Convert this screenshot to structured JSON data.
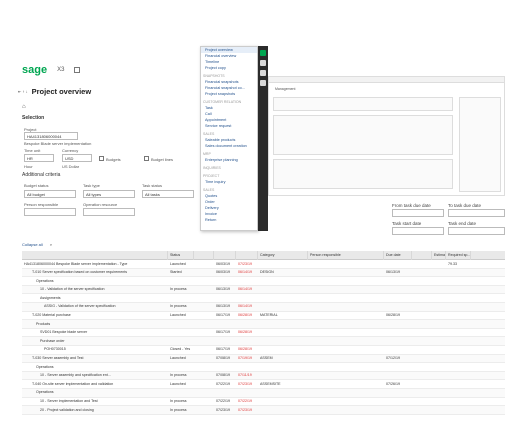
{
  "app": {
    "brand": "sage",
    "product": "X3"
  },
  "page": {
    "title": "Project overview"
  },
  "selection": {
    "heading": "Selection",
    "project_label": "Project",
    "project_value": "HA4131806000044",
    "project_desc": "Bespoke Blade server implementation",
    "timeunit_label": "Time unit",
    "currency_label": "Currency",
    "timeunit_value": "HR",
    "currency_value": "USD",
    "timeunit_desc": "Hour",
    "currency_desc": "US Dollar",
    "budgets_label": "Budgets",
    "budget_lines_label": "Budget lines"
  },
  "additional": {
    "heading": "Additional criteria",
    "budget_status_label": "Budget status",
    "task_type_label": "Task type",
    "task_status_label": "Task status",
    "budget_status_value": "All budget",
    "task_type_value": "All types",
    "task_status_value": "All tasks",
    "person_label": "Person responsible",
    "operation_label": "Operation resource"
  },
  "right_fields": {
    "from_due": "From task due date",
    "to_due": "To task due date",
    "task_start": "Task start date",
    "task_end": "Task end date"
  },
  "menu": {
    "items": [
      {
        "type": "item",
        "label": "Project overview"
      },
      {
        "type": "item",
        "label": "Financial overview"
      },
      {
        "type": "item",
        "label": "Timeline"
      },
      {
        "type": "item",
        "label": "Project copy"
      },
      {
        "type": "head",
        "label": "SNAPSHOTS"
      },
      {
        "type": "item",
        "label": "Financial snapshots"
      },
      {
        "type": "item",
        "label": "Financial snapshot co..."
      },
      {
        "type": "item",
        "label": "Project snapshots"
      },
      {
        "type": "head",
        "label": "CUSTOMER RELATION"
      },
      {
        "type": "item",
        "label": "Task"
      },
      {
        "type": "item",
        "label": "Call"
      },
      {
        "type": "item",
        "label": "Appointment"
      },
      {
        "type": "item",
        "label": "Service request"
      },
      {
        "type": "head",
        "label": "SALES"
      },
      {
        "type": "item",
        "label": "Saleable products"
      },
      {
        "type": "item",
        "label": "Sales document creation"
      },
      {
        "type": "head",
        "label": "MRP"
      },
      {
        "type": "item",
        "label": "Enterprise planning"
      },
      {
        "type": "head",
        "label": "INQUIRIES"
      },
      {
        "type": "head",
        "label": "PROJECT"
      },
      {
        "type": "item",
        "label": "Time inquiry"
      },
      {
        "type": "head",
        "label": "SALES"
      },
      {
        "type": "item",
        "label": "Quotes"
      },
      {
        "type": "item",
        "label": "Order"
      },
      {
        "type": "item",
        "label": "Delivery"
      },
      {
        "type": "item",
        "label": "Invoice"
      },
      {
        "type": "item",
        "label": "Return"
      }
    ]
  },
  "preview": {
    "title": "Management"
  },
  "toolbar": {
    "label": "Collapse all"
  },
  "table": {
    "headers": [
      "",
      "Status",
      "",
      "",
      "",
      "Category",
      "Person responsible",
      "Due date",
      "",
      "Estimat...",
      "Required sp..."
    ],
    "rows": [
      [
        "HA4131806000044 Bespoke Blade server implementation - Type",
        "Launched",
        "",
        "06/03/19",
        "07/23/19",
        "",
        "",
        "",
        "",
        "",
        "79.33"
      ],
      [
        "T-010 Server specification based on customer requirements",
        "Started",
        "",
        "06/03/19",
        "06/14/19",
        "DESIGN",
        "",
        "06/13/19",
        "",
        "",
        ""
      ],
      [
        "Operations",
        "",
        "",
        "",
        "",
        "",
        "",
        "",
        "",
        "",
        ""
      ],
      [
        "10 - Validation of the server specification",
        "In process",
        "",
        "06/13/19",
        "06/14/19",
        "",
        "",
        "",
        "",
        "",
        ""
      ],
      [
        "Assignments",
        "",
        "",
        "",
        "",
        "",
        "",
        "",
        "",
        "",
        ""
      ],
      [
        "ASSIG - Validation of the server specification",
        "In process",
        "",
        "06/13/19",
        "06/14/19",
        "",
        "",
        "",
        "",
        "",
        ""
      ],
      [
        "T-020 Material purchase",
        "Launched",
        "",
        "06/17/19",
        "06/28/19",
        "MATERIAL",
        "",
        "06/28/19",
        "",
        "",
        ""
      ],
      [
        "Products",
        "",
        "",
        "",
        "",
        "",
        "",
        "",
        "",
        "",
        ""
      ],
      [
        "SVD01 Bespoke blade server",
        "",
        "",
        "06/17/19",
        "06/28/19",
        "",
        "",
        "",
        "",
        "",
        ""
      ],
      [
        "Purchase order",
        "",
        "",
        "",
        "",
        "",
        "",
        "",
        "",
        "",
        ""
      ],
      [
        "POH0730015",
        "Closed - Yes",
        "",
        "06/17/19",
        "06/28/19",
        "",
        "",
        "",
        "",
        "",
        ""
      ],
      [
        "T-030 Server assembly and Test",
        "Launched",
        "",
        "07/08/19",
        "07/19/19",
        "ASSEM",
        "",
        "07/12/19",
        "",
        "",
        ""
      ],
      [
        "Operations",
        "",
        "",
        "",
        "",
        "",
        "",
        "",
        "",
        "",
        ""
      ],
      [
        "10 - Server assembly and specification ent...",
        "In process",
        "",
        "07/08/19",
        "07/11/19",
        "",
        "",
        "",
        "",
        "",
        ""
      ],
      [
        "T-040 On-site server implementation and validation",
        "Launched",
        "",
        "07/22/19",
        "07/23/19",
        "ASSEMSITE",
        "",
        "07/26/19",
        "",
        "",
        ""
      ],
      [
        "Operations",
        "",
        "",
        "",
        "",
        "",
        "",
        "",
        "",
        "",
        ""
      ],
      [
        "10 - Server implementation and Test",
        "In process",
        "",
        "07/22/19",
        "07/22/19",
        "",
        "",
        "",
        "",
        "",
        ""
      ],
      [
        "20 - Project validation and closing",
        "In process",
        "",
        "07/23/19",
        "07/23/19",
        "",
        "",
        "",
        "",
        "",
        ""
      ]
    ]
  }
}
